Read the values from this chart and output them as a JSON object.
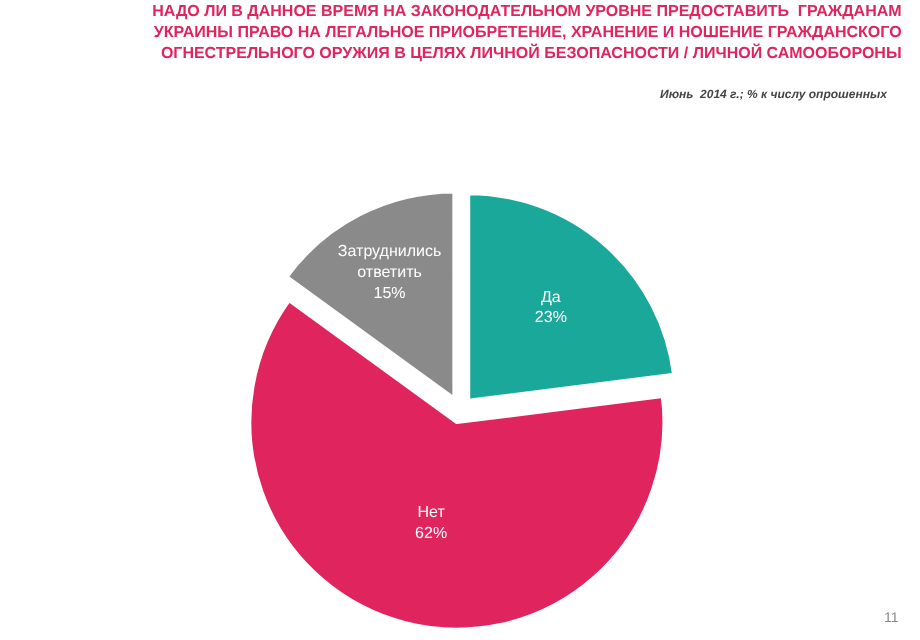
{
  "chart_data": {
    "type": "pie",
    "title": "НАДО ЛИ В ДАННОЕ ВРЕМЯ НА ЗАКОНОДАТЕЛЬНОМ УРОВНЕ ПРЕДОСТАВИТЬ  ГРАЖДАНАМ\nУКРАИНЫ ПРАВО НА ЛЕГАЛЬНОЕ ПРИОБРЕТЕНИЕ, ХРАНЕНИЕ И НОШЕНИЕ ГРАЖДАНСКОГО\nОГНЕСТРЕЛЬНОГО ОРУЖИЯ В ЦЕЛЯХ ЛИЧНОЙ БЕЗОПАСНОСТИ / ЛИЧНОЙ САМООБОРОНЫ",
    "subtitle": "Июнь  2014 г.; % к числу опрошенных",
    "categories": [
      "Да",
      "Нет",
      "Затруднились\nответить"
    ],
    "values": [
      23,
      62,
      15
    ],
    "colors": [
      "#1aa89a",
      "#e0245e",
      "#8a8a8a"
    ],
    "value_labels": [
      "23%",
      "62%",
      "15%"
    ],
    "annotations": [
      "11"
    ],
    "legend": false
  }
}
